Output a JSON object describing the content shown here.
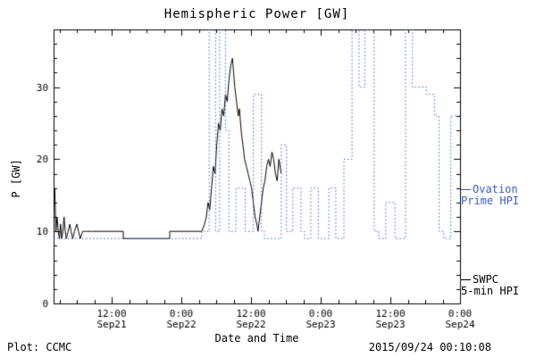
{
  "footer": {
    "left": "Plot: CCMC",
    "right": "2015/09/24 00:10:08"
  },
  "legend": {
    "ovation": {
      "line1": "Ovation",
      "line2": "Prime HPI",
      "color": "#3a5fcd"
    },
    "swpc": {
      "line1": "SWPC",
      "line2": "5-min HPI",
      "color": "#000000"
    }
  },
  "chart_data": {
    "type": "line",
    "title": "Hemispheric Power [GW]",
    "xlabel": "Date and Time",
    "ylabel": "P [GW]",
    "x_unit": "hours since 2015-09-21 00:00",
    "xlim": [
      2,
      72
    ],
    "ylim": [
      0,
      38
    ],
    "grid": false,
    "legend_position": "right-outside",
    "xticks": [
      {
        "t": 12,
        "l1": "12:00",
        "l2": "Sep21"
      },
      {
        "t": 24,
        "l1": "0:00",
        "l2": "Sep22"
      },
      {
        "t": 36,
        "l1": "12:00",
        "l2": "Sep22"
      },
      {
        "t": 48,
        "l1": "0:00",
        "l2": "Sep23"
      },
      {
        "t": 60,
        "l1": "12:00",
        "l2": "Sep23"
      },
      {
        "t": 72,
        "l1": "0:00",
        "l2": "Sep24"
      }
    ],
    "yticks": [
      0,
      10,
      20,
      30
    ],
    "x_minor_step": 3,
    "y_minor_step": 2,
    "series": [
      {
        "name": "SWPC 5-min HPI",
        "color": "#000000",
        "dash": "solid",
        "step": false,
        "points": [
          [
            2.2,
            16
          ],
          [
            2.3,
            13
          ],
          [
            2.4,
            10
          ],
          [
            2.6,
            12
          ],
          [
            2.8,
            10
          ],
          [
            3.0,
            9
          ],
          [
            3.2,
            11
          ],
          [
            3.4,
            9
          ],
          [
            3.6,
            10
          ],
          [
            3.8,
            12
          ],
          [
            4.0,
            10
          ],
          [
            4.2,
            9
          ],
          [
            4.5,
            10
          ],
          [
            4.8,
            11
          ],
          [
            5.0,
            10
          ],
          [
            5.3,
            9
          ],
          [
            5.6,
            10
          ],
          [
            6.0,
            11
          ],
          [
            6.3,
            10
          ],
          [
            6.6,
            9
          ],
          [
            7.0,
            10
          ],
          [
            7.5,
            10
          ],
          [
            8.5,
            10
          ],
          [
            10,
            10
          ],
          [
            14,
            10
          ],
          [
            14,
            9
          ],
          [
            22,
            9
          ],
          [
            22,
            10
          ],
          [
            27.5,
            10
          ],
          [
            28.0,
            11
          ],
          [
            28.3,
            12
          ],
          [
            28.6,
            14
          ],
          [
            28.9,
            13
          ],
          [
            29.2,
            16
          ],
          [
            29.5,
            19
          ],
          [
            29.8,
            18
          ],
          [
            30.1,
            22
          ],
          [
            30.4,
            25
          ],
          [
            30.7,
            24
          ],
          [
            31.0,
            27
          ],
          [
            31.3,
            26
          ],
          [
            31.6,
            29
          ],
          [
            31.9,
            28
          ],
          [
            32.2,
            31
          ],
          [
            32.5,
            33
          ],
          [
            32.8,
            34
          ],
          [
            33.0,
            32
          ],
          [
            33.2,
            30
          ],
          [
            33.5,
            28
          ],
          [
            33.8,
            26
          ],
          [
            34.0,
            27
          ],
          [
            34.3,
            24
          ],
          [
            34.6,
            22
          ],
          [
            34.9,
            20
          ],
          [
            35.2,
            19
          ],
          [
            35.5,
            18
          ],
          [
            35.8,
            17
          ],
          [
            36.1,
            16
          ],
          [
            36.4,
            14
          ],
          [
            36.7,
            12
          ],
          [
            37.0,
            11
          ],
          [
            37.2,
            10
          ],
          [
            37.5,
            12
          ],
          [
            37.8,
            14
          ],
          [
            38.1,
            16
          ],
          [
            38.4,
            17
          ],
          [
            38.7,
            19
          ],
          [
            39.0,
            20
          ],
          [
            39.3,
            19
          ],
          [
            39.6,
            21
          ],
          [
            39.9,
            20
          ],
          [
            40.2,
            18
          ],
          [
            40.5,
            17
          ],
          [
            40.8,
            20
          ],
          [
            41.0,
            19
          ],
          [
            41.2,
            18
          ]
        ]
      },
      {
        "name": "Ovation Prime HPI",
        "color": "#3a5fcd",
        "dash": "dotted",
        "step": true,
        "points": [
          [
            2,
            9
          ],
          [
            27.5,
            10
          ],
          [
            28.8,
            38
          ],
          [
            29.9,
            10
          ],
          [
            30.6,
            38
          ],
          [
            31.6,
            24
          ],
          [
            32.2,
            10
          ],
          [
            33.4,
            16
          ],
          [
            35.0,
            10
          ],
          [
            36.4,
            29
          ],
          [
            37.8,
            10
          ],
          [
            38.3,
            9
          ],
          [
            41.2,
            22
          ],
          [
            42.1,
            10
          ],
          [
            43.2,
            16
          ],
          [
            44.6,
            10
          ],
          [
            45.2,
            9
          ],
          [
            46.3,
            16
          ],
          [
            47.6,
            9
          ],
          [
            49.4,
            16
          ],
          [
            50.6,
            9
          ],
          [
            52.0,
            20
          ],
          [
            53.4,
            38
          ],
          [
            54.6,
            30
          ],
          [
            55.6,
            38
          ],
          [
            57.2,
            10
          ],
          [
            58.0,
            9
          ],
          [
            59.2,
            14
          ],
          [
            60.8,
            9
          ],
          [
            62.6,
            38
          ],
          [
            63.8,
            30
          ],
          [
            66.2,
            29
          ],
          [
            67.6,
            26
          ],
          [
            68.4,
            10
          ],
          [
            69.2,
            9
          ],
          [
            70.4,
            26
          ],
          [
            72,
            26
          ]
        ]
      }
    ]
  }
}
